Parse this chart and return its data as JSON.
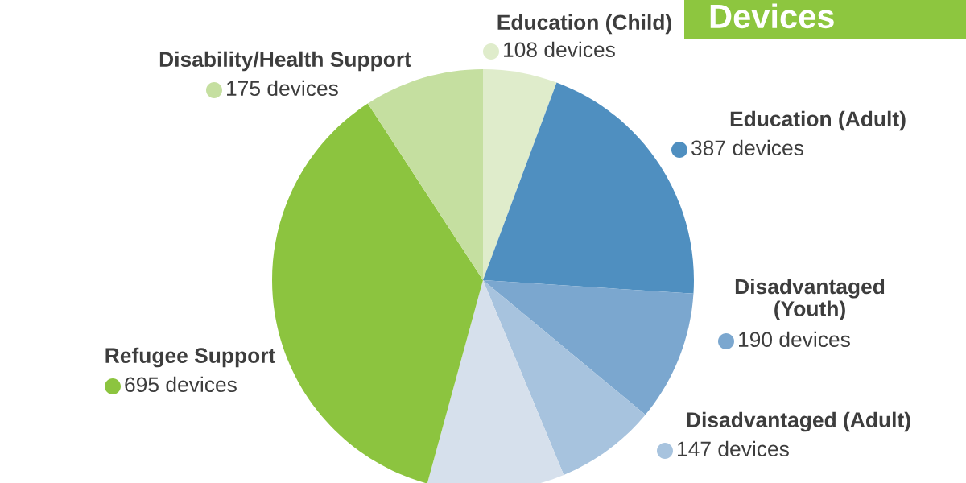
{
  "chart_data": {
    "type": "pie",
    "title": "Devices",
    "categories": [
      "Education (Child)",
      "Education (Adult)",
      "Disadvantaged (Youth)",
      "Disadvantaged (Adult)",
      null,
      "Refugee Support",
      "Disability/Health Support"
    ],
    "values": [
      108,
      387,
      190,
      147,
      200,
      695,
      175
    ],
    "colors": [
      "#dfeccb",
      "#4f8fc0",
      "#7ba7cf",
      "#a7c3de",
      "#d6e0ec",
      "#8cc43f",
      "#c5dfa0"
    ],
    "value_labels": [
      "108 devices",
      "387 devices",
      "190 devices",
      "147 devices",
      null,
      "695 devices",
      "175 devices"
    ]
  }
}
